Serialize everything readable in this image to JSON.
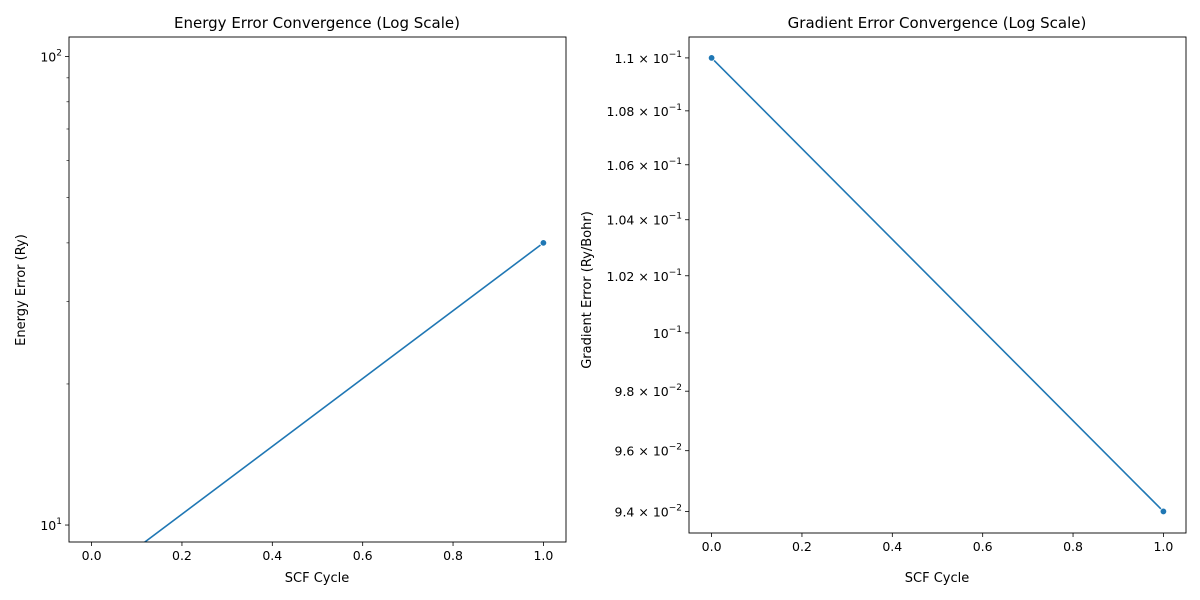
{
  "chart_data": [
    {
      "type": "line",
      "title": "Energy Error Convergence (Log Scale)",
      "xlabel": "SCF Cycle",
      "ylabel": "Energy Error (Ry)",
      "yscale": "log",
      "xlim": [
        -0.05,
        1.05
      ],
      "ylim": [
        9.2,
        110
      ],
      "grid": false,
      "color": "#1f77b4",
      "series": [
        {
          "x": [
            0,
            1
          ],
          "y": [
            0,
            40
          ],
          "markers": [
            false,
            true
          ]
        }
      ],
      "x_ticks": [
        {
          "value": 0.0,
          "label": "0.0"
        },
        {
          "value": 0.2,
          "label": "0.2"
        },
        {
          "value": 0.4,
          "label": "0.4"
        },
        {
          "value": 0.6,
          "label": "0.6"
        },
        {
          "value": 0.8,
          "label": "0.8"
        },
        {
          "value": 1.0,
          "label": "1.0"
        }
      ],
      "y_ticks": [
        {
          "value": 10,
          "base": "10",
          "exp": "1",
          "mant": ""
        },
        {
          "value": 100,
          "base": "10",
          "exp": "2",
          "mant": ""
        }
      ],
      "y_minor_ticks": [
        20,
        30,
        40,
        50,
        60,
        70,
        80,
        90
      ]
    },
    {
      "type": "line",
      "title": "Gradient Error Convergence (Log Scale)",
      "xlabel": "SCF Cycle",
      "ylabel": "Gradient Error (Ry/Bohr)",
      "yscale": "log",
      "xlim": [
        -0.05,
        1.05
      ],
      "ylim": [
        0.0933,
        0.1108
      ],
      "grid": false,
      "color": "#1f77b4",
      "series": [
        {
          "x": [
            0,
            1
          ],
          "y": [
            0.11,
            0.094
          ],
          "markers": [
            true,
            true
          ]
        }
      ],
      "x_ticks": [
        {
          "value": 0.0,
          "label": "0.0"
        },
        {
          "value": 0.2,
          "label": "0.2"
        },
        {
          "value": 0.4,
          "label": "0.4"
        },
        {
          "value": 0.6,
          "label": "0.6"
        },
        {
          "value": 0.8,
          "label": "0.8"
        },
        {
          "value": 1.0,
          "label": "1.0"
        }
      ],
      "y_ticks": [
        {
          "value": 0.094,
          "mant": "9.4 × ",
          "base": "10",
          "exp": "−2"
        },
        {
          "value": 0.096,
          "mant": "9.6 × ",
          "base": "10",
          "exp": "−2"
        },
        {
          "value": 0.098,
          "mant": "9.8 × ",
          "base": "10",
          "exp": "−2"
        },
        {
          "value": 0.1,
          "mant": "",
          "base": "10",
          "exp": "−1"
        },
        {
          "value": 0.102,
          "mant": "1.02 × ",
          "base": "10",
          "exp": "−1"
        },
        {
          "value": 0.104,
          "mant": "1.04 × ",
          "base": "10",
          "exp": "−1"
        },
        {
          "value": 0.106,
          "mant": "1.06 × ",
          "base": "10",
          "exp": "−1"
        },
        {
          "value": 0.108,
          "mant": "1.08 × ",
          "base": "10",
          "exp": "−1"
        },
        {
          "value": 0.11,
          "mant": "1.1 × ",
          "base": "10",
          "exp": "−1"
        }
      ],
      "y_minor_ticks": []
    }
  ]
}
